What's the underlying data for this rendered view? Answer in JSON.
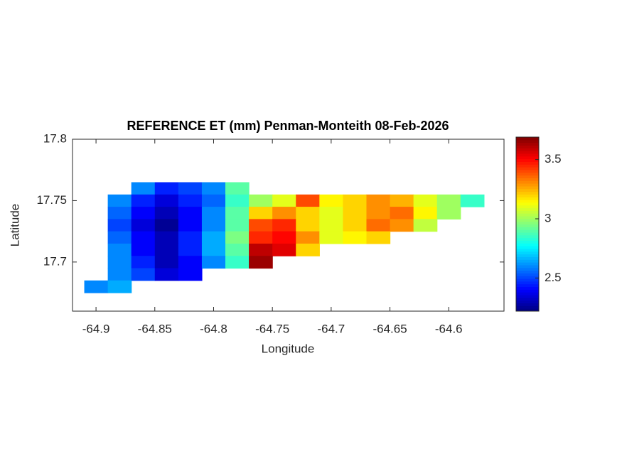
{
  "chart_data": {
    "type": "heatmap",
    "title": "REFERENCE ET (mm) Penman-Monteith 08-Feb-2026",
    "xlabel": "Longitude",
    "ylabel": "Latitude",
    "x": [
      -64.9,
      -64.88,
      -64.86,
      -64.84,
      -64.82,
      -64.8,
      -64.78,
      -64.76,
      -64.74,
      -64.72,
      -64.7,
      -64.68,
      -64.66,
      -64.64,
      -64.62,
      -64.6,
      -64.58
    ],
    "y": [
      17.76,
      17.75,
      17.74,
      17.73,
      17.72,
      17.71,
      17.7,
      17.69,
      17.68
    ],
    "z": [
      [
        null,
        null,
        2.6,
        2.45,
        2.5,
        2.6,
        2.9,
        null,
        null,
        null,
        null,
        null,
        null,
        null,
        null,
        null,
        null
      ],
      [
        null,
        2.6,
        2.45,
        2.35,
        2.45,
        2.55,
        2.85,
        3.0,
        3.1,
        3.4,
        3.15,
        3.2,
        3.3,
        3.25,
        3.1,
        3.0,
        2.85
      ],
      [
        null,
        2.55,
        2.4,
        2.3,
        2.4,
        2.6,
        2.9,
        3.2,
        3.3,
        3.2,
        3.1,
        3.2,
        3.3,
        3.35,
        3.15,
        3.0,
        null
      ],
      [
        null,
        2.5,
        2.35,
        2.25,
        2.4,
        2.6,
        2.9,
        3.4,
        3.45,
        3.2,
        3.1,
        3.2,
        3.35,
        3.3,
        3.05,
        null,
        null
      ],
      [
        null,
        2.55,
        2.4,
        2.3,
        2.45,
        2.65,
        2.95,
        3.45,
        3.5,
        3.3,
        3.1,
        3.15,
        3.2,
        null,
        null,
        null,
        null
      ],
      [
        null,
        2.6,
        2.4,
        2.3,
        2.45,
        2.65,
        2.9,
        3.6,
        3.55,
        3.2,
        null,
        null,
        null,
        null,
        null,
        null,
        null
      ],
      [
        null,
        2.6,
        2.45,
        2.3,
        2.4,
        2.6,
        2.85,
        3.65,
        null,
        null,
        null,
        null,
        null,
        null,
        null,
        null,
        null
      ],
      [
        null,
        2.6,
        2.5,
        2.35,
        2.4,
        null,
        null,
        null,
        null,
        null,
        null,
        null,
        null,
        null,
        null,
        null,
        null
      ],
      [
        2.6,
        2.65,
        null,
        null,
        null,
        null,
        null,
        null,
        null,
        null,
        null,
        null,
        null,
        null,
        null,
        null,
        null
      ]
    ],
    "xlim": [
      -64.92,
      -64.553
    ],
    "ylim": [
      17.66,
      17.8
    ],
    "xticks": [
      -64.9,
      -64.85,
      -64.8,
      -64.75,
      -64.7,
      -64.65,
      -64.6
    ],
    "yticks": [
      17.7,
      17.75,
      17.8
    ],
    "colormap": "jet",
    "clim": [
      2.22,
      3.69
    ],
    "cticks": [
      2.5,
      3,
      3.5
    ]
  }
}
